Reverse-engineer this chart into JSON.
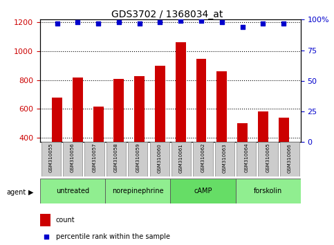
{
  "title": "GDS3702 / 1368034_at",
  "samples": [
    "GSM310055",
    "GSM310056",
    "GSM310057",
    "GSM310058",
    "GSM310059",
    "GSM310060",
    "GSM310061",
    "GSM310062",
    "GSM310063",
    "GSM310064",
    "GSM310065",
    "GSM310066"
  ],
  "counts": [
    680,
    820,
    615,
    810,
    830,
    900,
    1065,
    950,
    860,
    500,
    585,
    540
  ],
  "percentile_ranks": [
    97,
    98,
    97,
    98,
    97,
    98,
    99,
    99,
    98,
    94,
    97,
    97
  ],
  "groups": [
    {
      "label": "untreated",
      "start": 0,
      "end": 3,
      "color": "#90EE90"
    },
    {
      "label": "norepinephrine",
      "start": 3,
      "end": 6,
      "color": "#90EE90"
    },
    {
      "label": "cAMP",
      "start": 6,
      "end": 9,
      "color": "#66DD66"
    },
    {
      "label": "forskolin",
      "start": 9,
      "end": 12,
      "color": "#90EE90"
    }
  ],
  "ylim_left": [
    370,
    1220
  ],
  "ylim_right": [
    0,
    100
  ],
  "y_ticks_left": [
    400,
    600,
    800,
    1000,
    1200
  ],
  "y_ticks_right": [
    0,
    25,
    50,
    75,
    100
  ],
  "bar_color": "#CC0000",
  "dot_color": "#0000CC",
  "bar_width": 0.5,
  "grid_color": "#000000",
  "background_color": "#ffffff",
  "tick_label_color_left": "#CC0000",
  "tick_label_color_right": "#0000CC",
  "xlabel_area_color": "#CCCCCC",
  "legend_count_color": "#CC0000",
  "legend_pct_color": "#0000CC"
}
